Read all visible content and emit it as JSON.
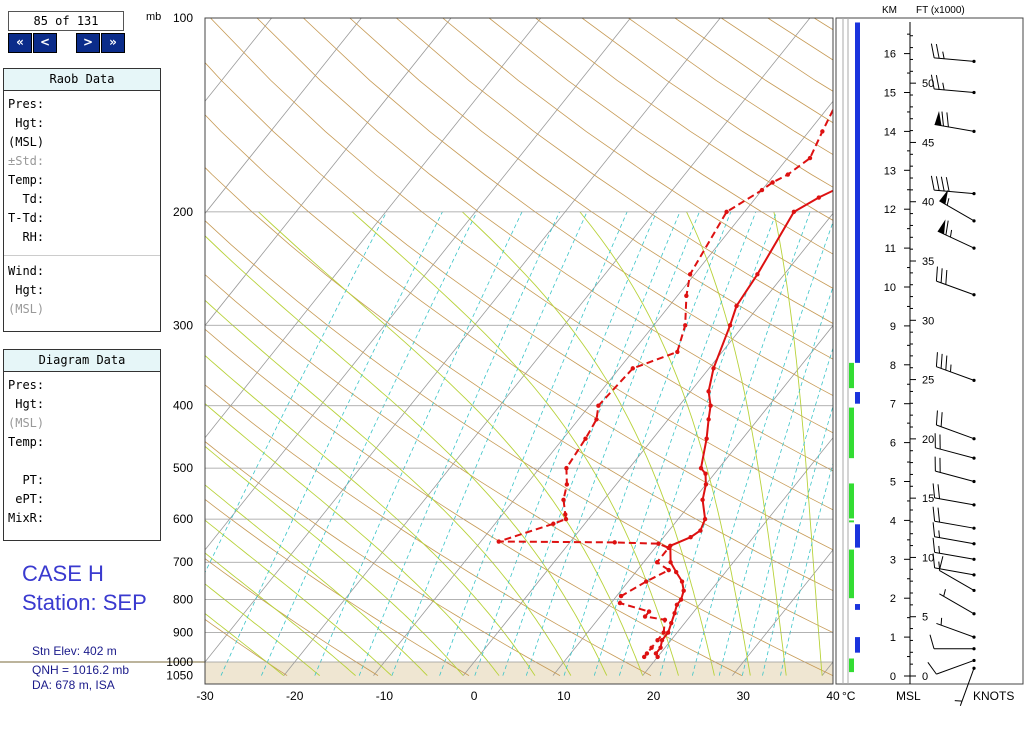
{
  "navigation": {
    "counter": "85 of 131",
    "buttons": [
      "«",
      "<",
      ">",
      "»"
    ]
  },
  "raob_panel": {
    "title": "Raob Data",
    "rows": [
      {
        "label": "Pres:",
        "muted": false
      },
      {
        "label": " Hgt:",
        "muted": false
      },
      {
        "label": "(MSL)",
        "muted": false
      },
      {
        "label": "±Std:",
        "muted": true
      },
      {
        "label": "Temp:",
        "muted": false
      },
      {
        "label": "  Td:",
        "muted": false
      },
      {
        "label": "T-Td:",
        "muted": false
      },
      {
        "label": "  RH:",
        "muted": false
      },
      {
        "label": "",
        "muted": false,
        "separator": true
      },
      {
        "label": "Wind:",
        "muted": false
      },
      {
        "label": " Hgt:",
        "muted": false
      },
      {
        "label": "(MSL)",
        "muted": true
      }
    ]
  },
  "diagram_panel": {
    "title": "Diagram Data",
    "rows": [
      {
        "label": "Pres:",
        "muted": false
      },
      {
        "label": " Hgt:",
        "muted": false
      },
      {
        "label": "(MSL)",
        "muted": true
      },
      {
        "label": "Temp:",
        "muted": false
      },
      {
        "label": "",
        "muted": false
      },
      {
        "label": "  PT:",
        "muted": false
      },
      {
        "label": " ePT:",
        "muted": false
      },
      {
        "label": "MixR:",
        "muted": false
      }
    ]
  },
  "case_label": "CASE H",
  "station_label": "Station: SEP",
  "station_info": {
    "elevation": "Stn Elev: 402 m",
    "qnh": "QNH = 1016.2 mb",
    "da": "DA: 678 m, ISA"
  },
  "colors": {
    "temperature": "#dd1111",
    "dewpoint": "#dd1111",
    "isotherm": "#9a9a9a",
    "dry_adiabat": "#c69a55",
    "moist_adiabat": "#b8d23a",
    "mixing_ratio": "#3ac4c8",
    "ground": "#efe6d2",
    "nav_button": "#0b2c8a",
    "panel_title": "#e6f6f8",
    "station_text": "#3a3acf",
    "bar_blue": "#1a33dd",
    "bar_green": "#33dd33"
  },
  "chart_data": {
    "type": "line",
    "title": "",
    "xlabel": "°C",
    "ylabel": "mb",
    "xlim": [
      -30,
      40
    ],
    "ylim": [
      1050,
      100
    ],
    "x_ticks": [
      "-30",
      "-20",
      "-10",
      "0",
      "10",
      "20",
      "30",
      "40"
    ],
    "pressure_ticks": [
      "100",
      "200",
      "300",
      "400",
      "500",
      "600",
      "700",
      "800",
      "900",
      "1000",
      "1050"
    ],
    "surface_pressure_mb": 982,
    "series": [
      {
        "kind": "temperature",
        "style": "solid",
        "points": [
          {
            "p": 100,
            "t": 4.0
          },
          {
            "p": 120,
            "t": 2.0
          },
          {
            "p": 135,
            "t": -1.5
          },
          {
            "p": 160,
            "t": -0.5
          },
          {
            "p": 175,
            "t": -0.5
          },
          {
            "p": 183,
            "t": -1.5
          },
          {
            "p": 190,
            "t": -3.0
          },
          {
            "p": 200,
            "t": -4.5
          },
          {
            "p": 250,
            "t": -3.0
          },
          {
            "p": 280,
            "t": -2.5
          },
          {
            "p": 300,
            "t": -1.5
          },
          {
            "p": 350,
            "t": 0.5
          },
          {
            "p": 380,
            "t": 2.0
          },
          {
            "p": 400,
            "t": 3.5
          },
          {
            "p": 420,
            "t": 4.5
          },
          {
            "p": 450,
            "t": 6.0
          },
          {
            "p": 500,
            "t": 8.0
          },
          {
            "p": 510,
            "t": 9.0
          },
          {
            "p": 530,
            "t": 10.0
          },
          {
            "p": 560,
            "t": 11.0
          },
          {
            "p": 600,
            "t": 13.0
          },
          {
            "p": 625,
            "t": 13.5
          },
          {
            "p": 640,
            "t": 13.0
          },
          {
            "p": 660,
            "t": 11.5
          },
          {
            "p": 700,
            "t": 13.0
          },
          {
            "p": 725,
            "t": 14.5
          },
          {
            "p": 750,
            "t": 16.0
          },
          {
            "p": 775,
            "t": 17.0
          },
          {
            "p": 800,
            "t": 17.5
          },
          {
            "p": 815,
            "t": 17.5
          },
          {
            "p": 840,
            "t": 18.0
          },
          {
            "p": 870,
            "t": 18.5
          },
          {
            "p": 900,
            "t": 19.0
          },
          {
            "p": 925,
            "t": 19.0
          },
          {
            "p": 950,
            "t": 19.5
          },
          {
            "p": 970,
            "t": 19.5
          },
          {
            "p": 982,
            "t": 20.0
          }
        ]
      },
      {
        "kind": "dewpoint",
        "style": "dashed",
        "points": [
          {
            "p": 100,
            "t": -2.5
          },
          {
            "p": 110,
            "t": -4.0
          },
          {
            "p": 120,
            "t": -5.0
          },
          {
            "p": 130,
            "t": -7.0
          },
          {
            "p": 135,
            "t": -9.5
          },
          {
            "p": 150,
            "t": -8.5
          },
          {
            "p": 165,
            "t": -7.5
          },
          {
            "p": 175,
            "t": -8.5
          },
          {
            "p": 180,
            "t": -9.5
          },
          {
            "p": 185,
            "t": -10.0
          },
          {
            "p": 200,
            "t": -12.0
          },
          {
            "p": 250,
            "t": -10.5
          },
          {
            "p": 270,
            "t": -9.0
          },
          {
            "p": 300,
            "t": -6.5
          },
          {
            "p": 330,
            "t": -5.0
          },
          {
            "p": 350,
            "t": -8.5
          },
          {
            "p": 400,
            "t": -9.0
          },
          {
            "p": 420,
            "t": -8.0
          },
          {
            "p": 450,
            "t": -7.5
          },
          {
            "p": 500,
            "t": -7.0
          },
          {
            "p": 530,
            "t": -5.5
          },
          {
            "p": 560,
            "t": -4.5
          },
          {
            "p": 590,
            "t": -3.0
          },
          {
            "p": 600,
            "t": -2.5
          },
          {
            "p": 610,
            "t": -3.5
          },
          {
            "p": 650,
            "t": -8.0
          },
          {
            "p": 652,
            "t": 5.0
          },
          {
            "p": 655,
            "t": 10.0
          },
          {
            "p": 665,
            "t": 11.5
          },
          {
            "p": 700,
            "t": 11.5
          },
          {
            "p": 720,
            "t": 13.5
          },
          {
            "p": 750,
            "t": 12.0
          },
          {
            "p": 790,
            "t": 10.5
          },
          {
            "p": 810,
            "t": 11.0
          },
          {
            "p": 835,
            "t": 15.0
          },
          {
            "p": 850,
            "t": 15.0
          },
          {
            "p": 860,
            "t": 17.5
          },
          {
            "p": 900,
            "t": 18.5
          },
          {
            "p": 925,
            "t": 18.5
          },
          {
            "p": 950,
            "t": 18.5
          },
          {
            "p": 970,
            "t": 18.5
          },
          {
            "p": 982,
            "t": 18.5
          }
        ]
      }
    ],
    "altitude_axis": {
      "km_label": "KM",
      "ft_label": "FT (x1000)",
      "km_ticks": [
        "0",
        "1",
        "2",
        "3",
        "4",
        "5",
        "6",
        "7",
        "8",
        "9",
        "10",
        "11",
        "12",
        "13",
        "14",
        "15",
        "16"
      ],
      "ft_ticks": [
        "0",
        "5",
        "10",
        "15",
        "20",
        "25",
        "30",
        "35",
        "40",
        "45",
        "50"
      ],
      "msl_label": "MSL",
      "knots_label": "KNOTS"
    },
    "status_bar": {
      "blue_segments_km": [
        [
          8.05,
          16.8
        ],
        [
          7.0,
          7.3
        ],
        [
          3.3,
          3.9
        ],
        [
          1.7,
          1.85
        ],
        [
          0.6,
          1.0
        ]
      ],
      "green_segments_km": [
        [
          7.4,
          8.05
        ],
        [
          5.6,
          6.9
        ],
        [
          4.05,
          4.95
        ],
        [
          3.95,
          4.0
        ],
        [
          2.0,
          3.25
        ],
        [
          0.1,
          0.45
        ]
      ]
    },
    "wind_barbs": [
      {
        "alt_km": 0.2,
        "dir": 200,
        "speed": 5
      },
      {
        "alt_km": 0.4,
        "dir": 250,
        "speed": 10
      },
      {
        "alt_km": 0.7,
        "dir": 270,
        "speed": 10
      },
      {
        "alt_km": 1.0,
        "dir": 290,
        "speed": 5
      },
      {
        "alt_km": 1.6,
        "dir": 300,
        "speed": 5
      },
      {
        "alt_km": 2.2,
        "dir": 300,
        "speed": 10
      },
      {
        "alt_km": 2.6,
        "dir": 280,
        "speed": 15
      },
      {
        "alt_km": 3.0,
        "dir": 280,
        "speed": 15
      },
      {
        "alt_km": 3.4,
        "dir": 280,
        "speed": 15
      },
      {
        "alt_km": 3.8,
        "dir": 280,
        "speed": 20
      },
      {
        "alt_km": 4.4,
        "dir": 280,
        "speed": 20
      },
      {
        "alt_km": 5.0,
        "dir": 285,
        "speed": 20
      },
      {
        "alt_km": 5.6,
        "dir": 285,
        "speed": 20
      },
      {
        "alt_km": 6.1,
        "dir": 290,
        "speed": 20
      },
      {
        "alt_km": 7.6,
        "dir": 290,
        "speed": 35
      },
      {
        "alt_km": 9.8,
        "dir": 290,
        "speed": 30
      },
      {
        "alt_km": 11.0,
        "dir": 295,
        "speed": 65
      },
      {
        "alt_km": 11.7,
        "dir": 300,
        "speed": 55
      },
      {
        "alt_km": 12.4,
        "dir": 275,
        "speed": 40
      },
      {
        "alt_km": 14.0,
        "dir": 280,
        "speed": 70
      },
      {
        "alt_km": 15.0,
        "dir": 275,
        "speed": 25
      },
      {
        "alt_km": 15.8,
        "dir": 275,
        "speed": 25
      }
    ]
  }
}
